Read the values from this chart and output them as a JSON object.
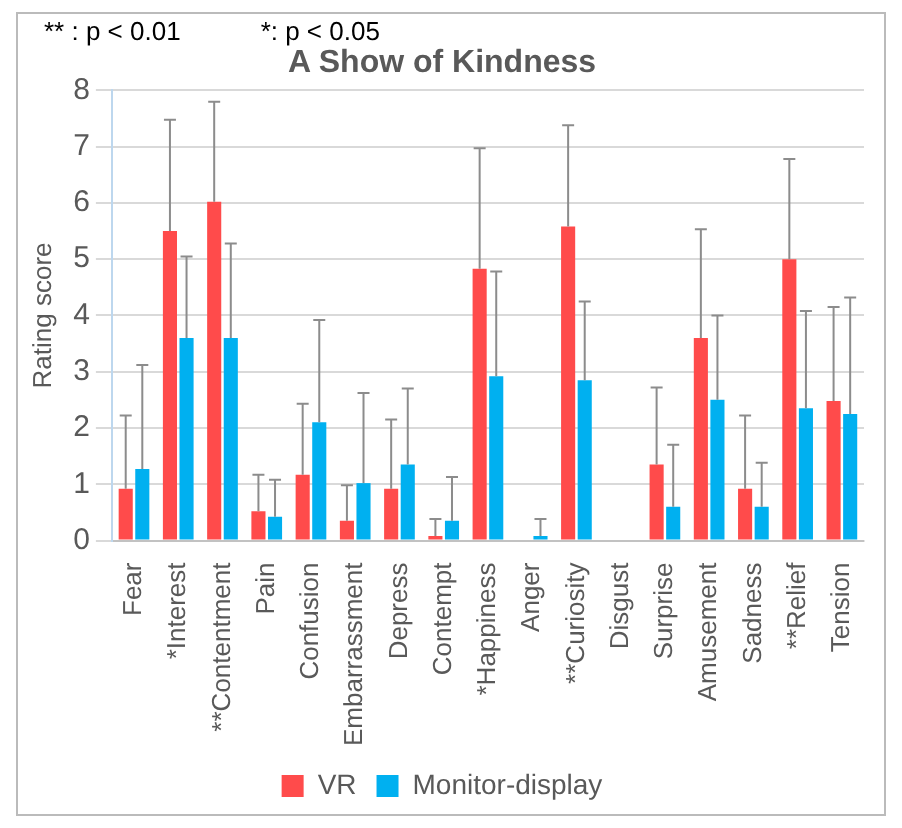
{
  "chart_data": {
    "type": "bar",
    "title": "A Show of Kindness",
    "ylabel": "Rating score",
    "annotations": [
      "** : p < 0.01",
      "*: p < 0.05"
    ],
    "categories": [
      "Fear",
      "*Interest",
      "**Contentment",
      "Pain",
      "Confusion",
      "Embarrassment",
      "Depress",
      "Contempt",
      "*Happiness",
      "Anger",
      "**Curiosity",
      "Disgust",
      "Surprise",
      "Amusement",
      "Sadness",
      "**Relief",
      "Tension"
    ],
    "series": [
      {
        "name": "VR",
        "color": "#ff4b4b",
        "values": [
          0.92,
          5.5,
          6.02,
          0.52,
          1.17,
          0.35,
          0.92,
          0.08,
          4.83,
          0,
          5.58,
          0,
          1.35,
          3.6,
          0.92,
          5.0,
          2.48
        ],
        "errors": [
          [
            0.92,
            2.22
          ],
          [
            5.5,
            7.48
          ],
          [
            6.02,
            7.8
          ],
          [
            0.52,
            1.17
          ],
          [
            1.17,
            2.43
          ],
          [
            0.35,
            0.98
          ],
          [
            0.92,
            2.15
          ],
          [
            0.08,
            0.38
          ],
          [
            4.83,
            6.97
          ],
          null,
          [
            5.58,
            7.38
          ],
          null,
          [
            1.35,
            2.72
          ],
          [
            3.6,
            5.53
          ],
          [
            0.92,
            2.22
          ],
          [
            5.0,
            6.78
          ],
          [
            2.48,
            4.15
          ]
        ]
      },
      {
        "name": "Monitor-display",
        "color": "#00b0f0",
        "values": [
          1.27,
          3.6,
          3.6,
          0.42,
          2.1,
          1.02,
          1.35,
          0.35,
          2.92,
          0.08,
          2.85,
          0,
          0.6,
          2.5,
          0.6,
          2.35,
          2.25
        ],
        "errors": [
          [
            1.27,
            3.12
          ],
          [
            3.6,
            5.05
          ],
          [
            3.6,
            5.28
          ],
          [
            0.42,
            1.08
          ],
          [
            2.1,
            3.92
          ],
          [
            1.02,
            2.62
          ],
          [
            1.35,
            2.7
          ],
          [
            0.35,
            1.13
          ],
          [
            2.92,
            4.78
          ],
          [
            0.08,
            0.38
          ],
          [
            2.85,
            4.25
          ],
          null,
          [
            0.6,
            1.7
          ],
          [
            2.5,
            4.0
          ],
          [
            0.6,
            1.38
          ],
          [
            2.35,
            4.08
          ],
          [
            2.25,
            4.32
          ]
        ]
      }
    ],
    "ylim": [
      0,
      8
    ],
    "yticks": [
      0,
      1,
      2,
      3,
      4,
      5,
      6,
      7,
      8
    ],
    "grid": "y",
    "legend": "bottom"
  }
}
